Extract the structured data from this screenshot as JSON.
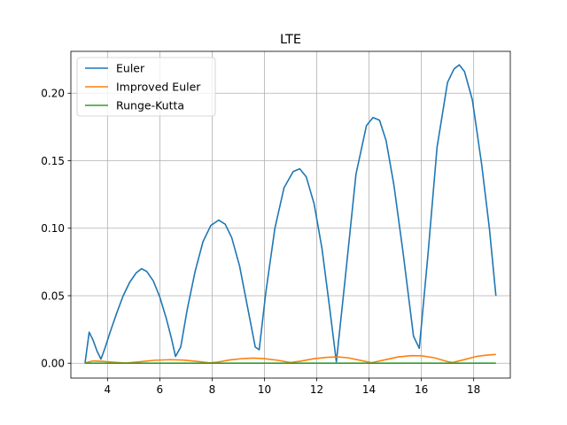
{
  "chart_data": {
    "type": "line",
    "title": "LTE",
    "xlabel": "",
    "ylabel": "",
    "xlim": [
      2.6,
      19.4
    ],
    "ylim": [
      -0.011,
      0.231
    ],
    "xticks": [
      4,
      6,
      8,
      10,
      12,
      14,
      16,
      18
    ],
    "yticks": [
      0.0,
      0.05,
      0.1,
      0.15,
      0.2
    ],
    "ytick_labels": [
      "0.00",
      "0.05",
      "0.10",
      "0.15",
      "0.20"
    ],
    "grid": true,
    "legend_position": "top-left",
    "series": [
      {
        "name": "Euler",
        "color": "#1f77b4",
        "points": [
          [
            3.14,
            0.0
          ],
          [
            3.3,
            0.023
          ],
          [
            3.45,
            0.017
          ],
          [
            3.6,
            0.009
          ],
          [
            3.75,
            0.003
          ],
          [
            3.9,
            0.011
          ],
          [
            4.1,
            0.023
          ],
          [
            4.35,
            0.037
          ],
          [
            4.6,
            0.05
          ],
          [
            4.85,
            0.06
          ],
          [
            5.1,
            0.067
          ],
          [
            5.3,
            0.07
          ],
          [
            5.5,
            0.068
          ],
          [
            5.75,
            0.061
          ],
          [
            6.0,
            0.049
          ],
          [
            6.25,
            0.033
          ],
          [
            6.45,
            0.018
          ],
          [
            6.6,
            0.005
          ],
          [
            6.8,
            0.012
          ],
          [
            7.05,
            0.04
          ],
          [
            7.35,
            0.068
          ],
          [
            7.65,
            0.09
          ],
          [
            7.95,
            0.102
          ],
          [
            8.25,
            0.106
          ],
          [
            8.5,
            0.103
          ],
          [
            8.75,
            0.093
          ],
          [
            9.05,
            0.072
          ],
          [
            9.35,
            0.042
          ],
          [
            9.65,
            0.012
          ],
          [
            9.8,
            0.01
          ],
          [
            10.05,
            0.052
          ],
          [
            10.4,
            0.1
          ],
          [
            10.75,
            0.13
          ],
          [
            11.1,
            0.142
          ],
          [
            11.35,
            0.144
          ],
          [
            11.6,
            0.138
          ],
          [
            11.9,
            0.118
          ],
          [
            12.2,
            0.085
          ],
          [
            12.5,
            0.04
          ],
          [
            12.75,
            0.001
          ],
          [
            13.1,
            0.065
          ],
          [
            13.5,
            0.14
          ],
          [
            13.9,
            0.176
          ],
          [
            14.15,
            0.182
          ],
          [
            14.4,
            0.18
          ],
          [
            14.65,
            0.165
          ],
          [
            14.95,
            0.132
          ],
          [
            15.3,
            0.082
          ],
          [
            15.7,
            0.02
          ],
          [
            15.92,
            0.011
          ],
          [
            16.25,
            0.08
          ],
          [
            16.6,
            0.16
          ],
          [
            17.0,
            0.208
          ],
          [
            17.25,
            0.218
          ],
          [
            17.45,
            0.221
          ],
          [
            17.65,
            0.216
          ],
          [
            17.95,
            0.195
          ],
          [
            18.3,
            0.148
          ],
          [
            18.6,
            0.1
          ],
          [
            18.85,
            0.05
          ]
        ]
      },
      {
        "name": "Improved Euler",
        "color": "#ff7f0e",
        "points": [
          [
            3.14,
            0.0003
          ],
          [
            3.45,
            0.0017
          ],
          [
            3.8,
            0.0014
          ],
          [
            4.2,
            0.0008
          ],
          [
            4.7,
            0.0001
          ],
          [
            5.2,
            0.001
          ],
          [
            5.8,
            0.0022
          ],
          [
            6.4,
            0.0026
          ],
          [
            6.9,
            0.0023
          ],
          [
            7.4,
            0.0014
          ],
          [
            7.9,
            0.0003
          ],
          [
            8.2,
            0.0008
          ],
          [
            8.7,
            0.0025
          ],
          [
            9.2,
            0.0035
          ],
          [
            9.6,
            0.0038
          ],
          [
            10.0,
            0.0034
          ],
          [
            10.5,
            0.0022
          ],
          [
            11.0,
            0.0005
          ],
          [
            11.4,
            0.0016
          ],
          [
            11.9,
            0.0034
          ],
          [
            12.4,
            0.0044
          ],
          [
            12.8,
            0.0047
          ],
          [
            13.2,
            0.004
          ],
          [
            13.7,
            0.002
          ],
          [
            14.1,
            0.0004
          ],
          [
            14.6,
            0.0025
          ],
          [
            15.1,
            0.0046
          ],
          [
            15.6,
            0.0056
          ],
          [
            16.0,
            0.0055
          ],
          [
            16.5,
            0.004
          ],
          [
            17.0,
            0.0012
          ],
          [
            17.2,
            0.0005
          ],
          [
            17.6,
            0.0025
          ],
          [
            18.1,
            0.005
          ],
          [
            18.5,
            0.006
          ],
          [
            18.85,
            0.0065
          ]
        ]
      },
      {
        "name": "Runge-Kutta",
        "color": "#2ca02c",
        "points": [
          [
            3.14,
            0.0
          ],
          [
            6.0,
            0.0
          ],
          [
            9.0,
            0.0
          ],
          [
            12.0,
            0.0
          ],
          [
            15.0,
            0.0
          ],
          [
            18.85,
            0.0
          ]
        ]
      }
    ]
  }
}
